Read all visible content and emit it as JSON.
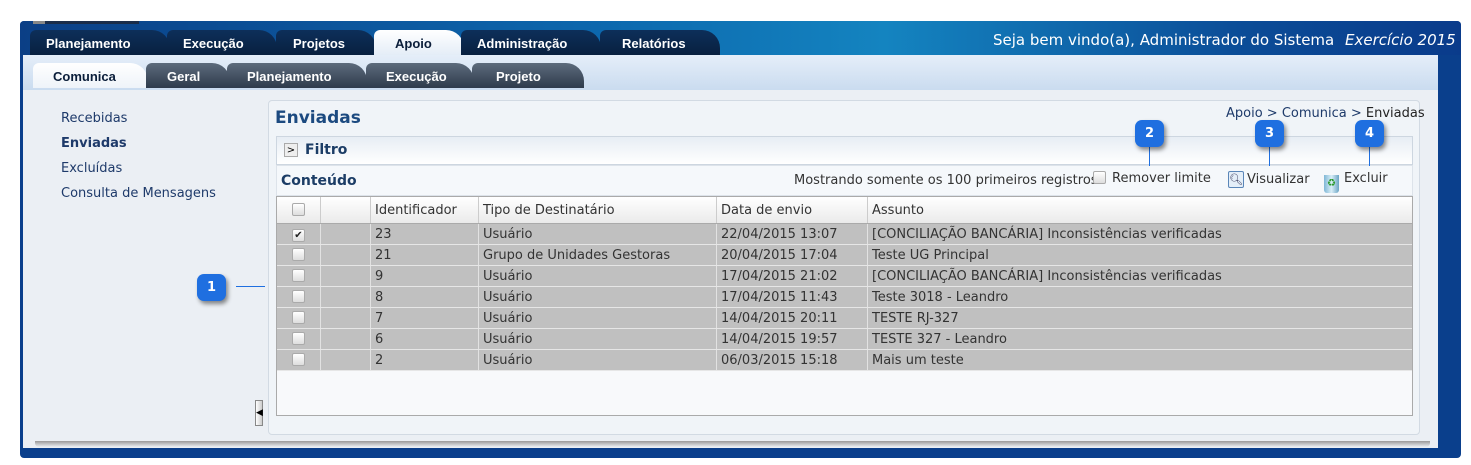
{
  "header": {
    "welcome": "Seja bem vindo(a), Administrador do Sistema",
    "exercise": "Exercício 2015"
  },
  "main_tabs": [
    {
      "label": "Planejamento"
    },
    {
      "label": "Execução"
    },
    {
      "label": "Projetos"
    },
    {
      "label": "Apoio",
      "active": true
    },
    {
      "label": "Administração"
    },
    {
      "label": "Relatórios"
    }
  ],
  "sub_tabs": [
    {
      "label": "Comunica",
      "active": true
    },
    {
      "label": "Geral"
    },
    {
      "label": "Planejamento"
    },
    {
      "label": "Execução"
    },
    {
      "label": "Projeto"
    }
  ],
  "sidebar": {
    "items": [
      {
        "label": "Recebidas"
      },
      {
        "label": "Enviadas",
        "active": true
      },
      {
        "label": "Excluídas"
      },
      {
        "label": "Consulta de Mensagens"
      }
    ]
  },
  "page": {
    "title": "Enviadas",
    "breadcrumb_link": "Apoio > Comunica > ",
    "breadcrumb_current": "Enviadas",
    "filter_label": "Filtro",
    "content_label": "Conteúdo",
    "limit_note": "Mostrando somente os 100 primeiros registros.",
    "remove_limit": "Remover limite",
    "view": "Visualizar",
    "delete": "Excluir"
  },
  "table": {
    "columns": [
      "",
      "",
      "Identificador",
      "Tipo de Destinatário",
      "Data de envio",
      "Assunto"
    ],
    "rows": [
      {
        "checked": true,
        "id": "23",
        "type": "Usuário",
        "date": "22/04/2015 13:07",
        "subject": "[CONCILIAÇÃO BANCÁRIA] Inconsistências verificadas"
      },
      {
        "checked": false,
        "id": "21",
        "type": "Grupo de Unidades Gestoras",
        "date": "20/04/2015 17:04",
        "subject": "Teste UG Principal"
      },
      {
        "checked": false,
        "id": "9",
        "type": "Usuário",
        "date": "17/04/2015 21:02",
        "subject": "[CONCILIAÇÃO BANCÁRIA] Inconsistências verificadas"
      },
      {
        "checked": false,
        "id": "8",
        "type": "Usuário",
        "date": "17/04/2015 11:43",
        "subject": "Teste 3018 - Leandro"
      },
      {
        "checked": false,
        "id": "7",
        "type": "Usuário",
        "date": "14/04/2015 20:11",
        "subject": "TESTE RJ-327"
      },
      {
        "checked": false,
        "id": "6",
        "type": "Usuário",
        "date": "14/04/2015 19:57",
        "subject": "TESTE 327 - Leandro"
      },
      {
        "checked": false,
        "id": "2",
        "type": "Usuário",
        "date": "06/03/2015 15:18",
        "subject": "Mais um teste"
      }
    ]
  },
  "callouts": [
    "1",
    "2",
    "3",
    "4"
  ],
  "colors": {
    "callout": "#1f6fe0",
    "row_bg": "#c0c0c0",
    "title": "#1c4a80"
  }
}
